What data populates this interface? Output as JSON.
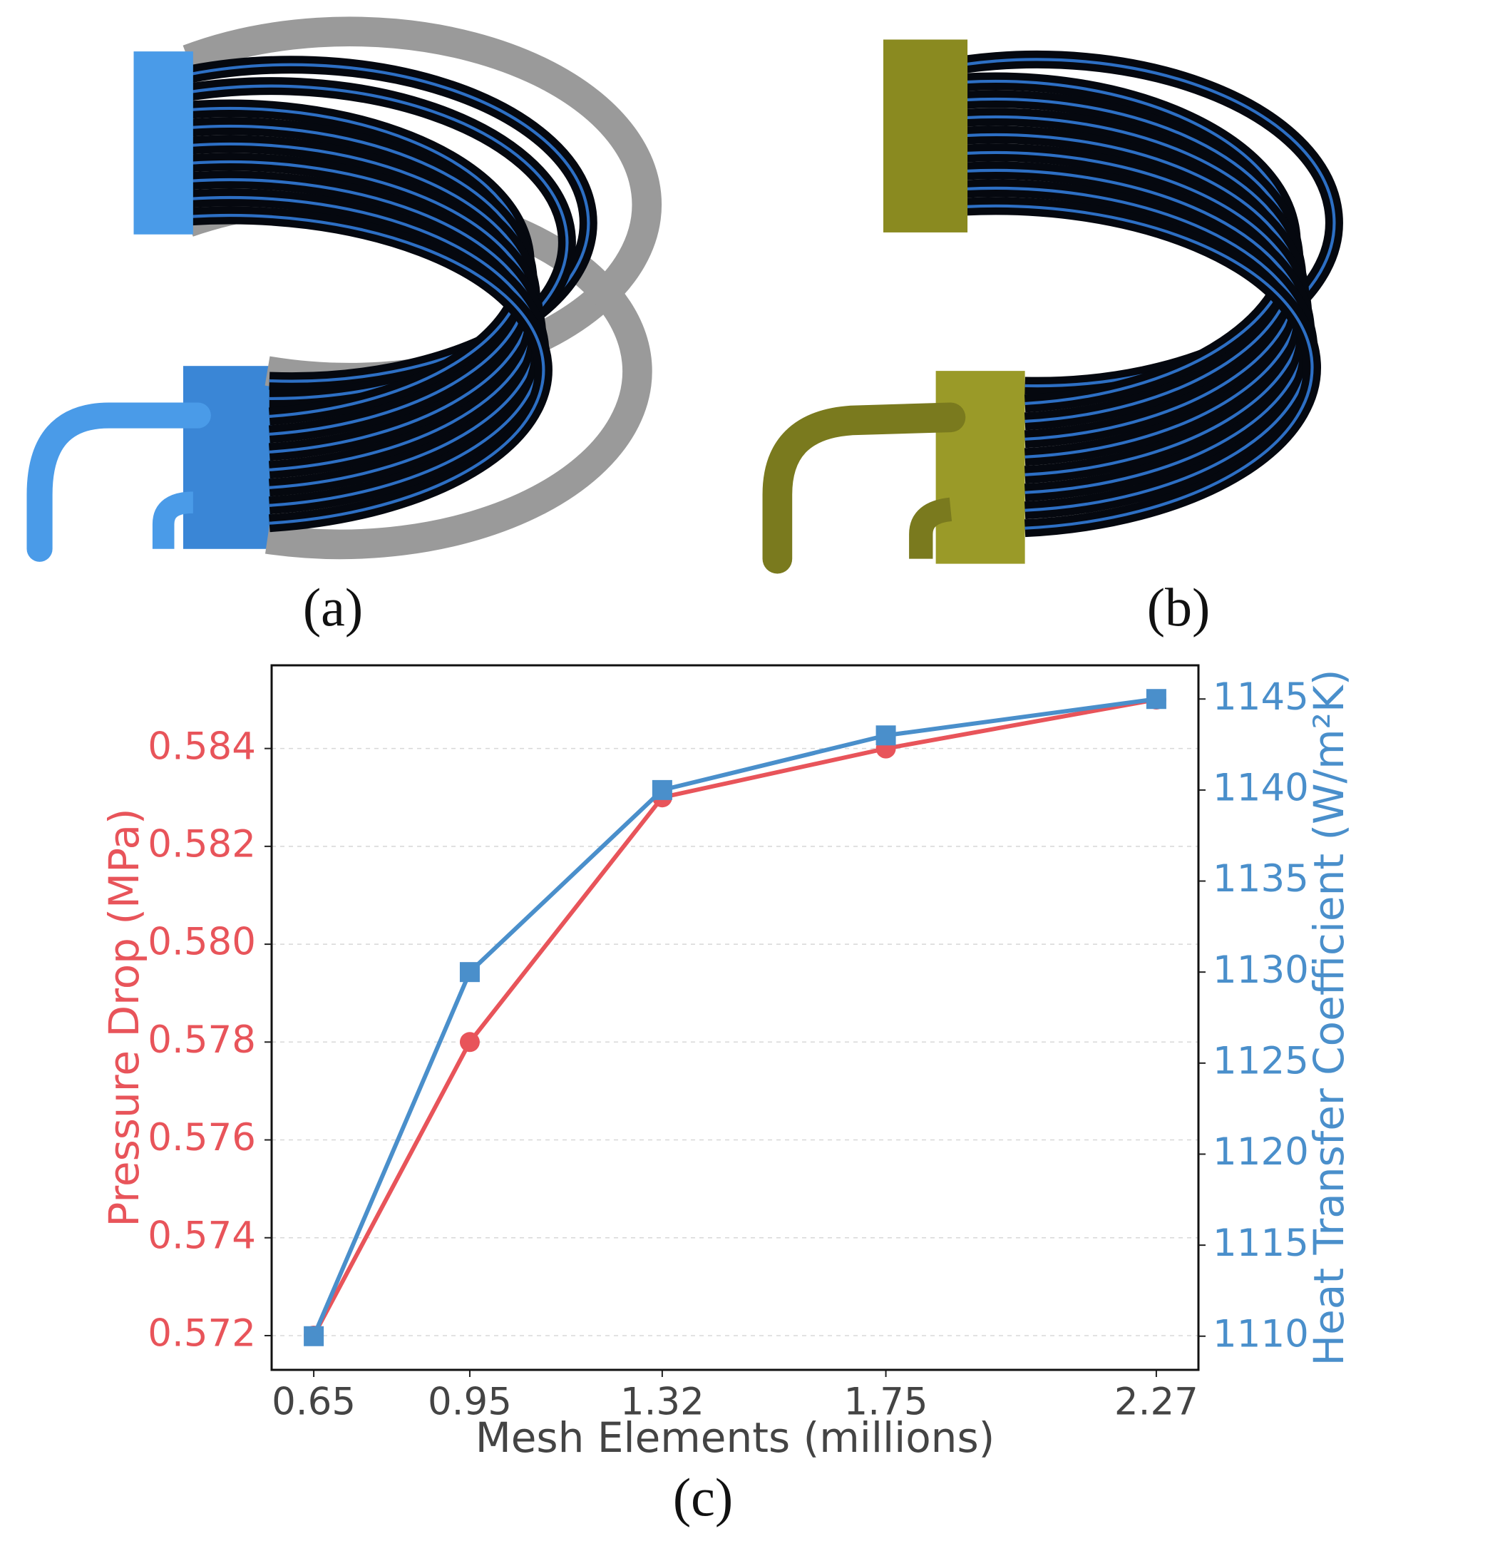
{
  "panel_labels": [
    "(a)",
    "(b)",
    "(c)"
  ],
  "chart_data": {
    "type": "line",
    "xlabel": "Mesh Elements (millions)",
    "ylabel": "Pressure Drop (MPa)",
    "y2label": "Heat Transfer Coefficient (W/m²K)",
    "x": [
      0.65,
      0.95,
      1.32,
      1.75,
      2.27
    ],
    "xlim": [
      0.569,
      2.351
    ],
    "xticks": [
      0.65,
      0.95,
      1.32,
      1.75,
      2.27
    ],
    "ylim": [
      0.5713,
      0.5857
    ],
    "yticks": [
      0.572,
      0.574,
      0.576,
      0.578,
      {
        "value": 0.58,
        "label": "0.580"
      },
      0.582,
      0.584
    ],
    "y2lim": [
      1108.15,
      1146.85
    ],
    "y2ticks": [
      1110,
      1115,
      1120,
      1125,
      1130,
      1135,
      1140,
      1145
    ],
    "grid": true,
    "series": [
      {
        "name": "Pressure Drop",
        "color": "#e8545a",
        "marker": "circle",
        "values": [
          0.572,
          0.578,
          0.583,
          0.584,
          0.585
        ]
      },
      {
        "name": "Heat Transfer Coefficient",
        "color": "#4a8fcb",
        "marker": "square",
        "axis": "y2",
        "values": [
          1110,
          1130,
          1140,
          1143,
          1145
        ]
      }
    ]
  }
}
